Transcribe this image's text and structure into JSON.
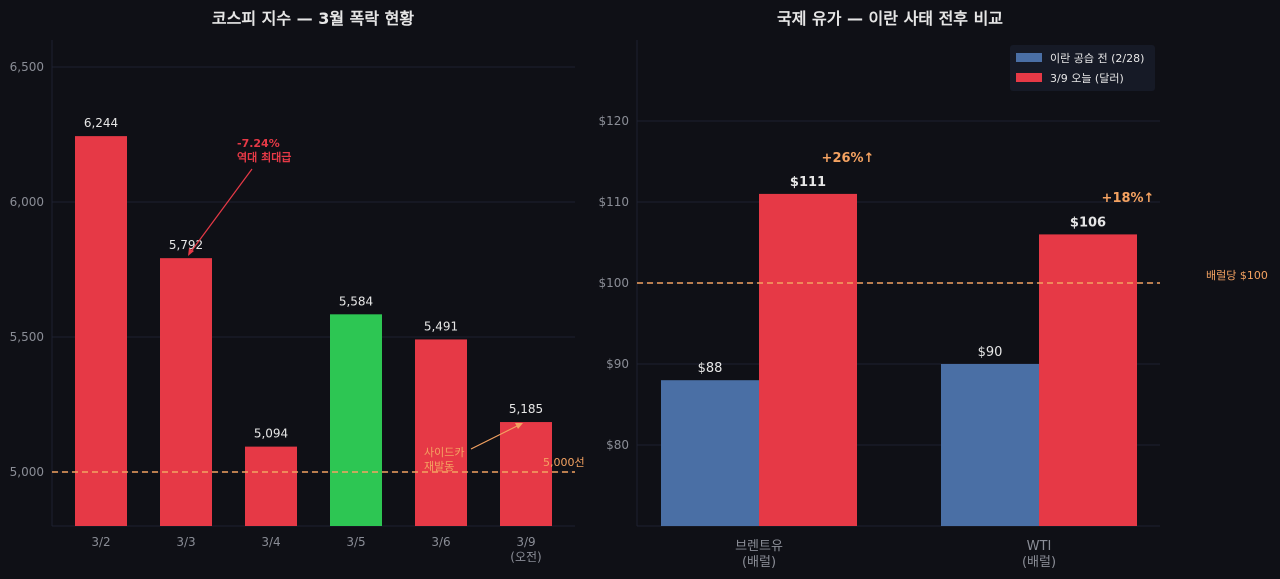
{
  "colors": {
    "background": "#0f1016",
    "grid": "#1e2130",
    "red": "#e63946",
    "green": "#2dc653",
    "blue": "#4a6fa5",
    "orange": "#f4a261",
    "text": "#e6e6e6",
    "tick": "#8a8d96"
  },
  "chart_data": [
    {
      "type": "bar",
      "title": "코스피 지수 — 3월 폭락 현황",
      "categories": [
        "3/2",
        "3/3",
        "3/4",
        "3/5",
        "3/6",
        "3/9\n(오전)"
      ],
      "values": [
        6244,
        5792,
        5094,
        5584,
        5491,
        5185
      ],
      "value_labels": [
        "6,244",
        "5,792",
        "5,094",
        "5,584",
        "5,491",
        "5,185"
      ],
      "bar_colors": [
        "red",
        "red",
        "red",
        "green",
        "red",
        "red"
      ],
      "ylim": [
        4800,
        6600
      ],
      "yticks": [
        5000,
        5500,
        6000,
        6500
      ],
      "ytick_labels": [
        "5,000",
        "5,500",
        "6,000",
        "6,500"
      ],
      "grid": true,
      "reference_line": {
        "value": 5000,
        "label": "5,000선"
      },
      "annotations": [
        {
          "text": "-7.24%\n역대 최대급",
          "target_category": "3/3",
          "color": "red"
        },
        {
          "text": "사이드카\n재발동",
          "target_category": "3/9\n(오전)",
          "color": "orange"
        }
      ]
    },
    {
      "type": "bar",
      "title": "국제 유가 — 이란 사태 전후 비교",
      "categories": [
        "브렌트유\n(배럴)",
        "WTI\n(배럴)"
      ],
      "series": [
        {
          "name": "이란 공습 전 (2/28)",
          "values": [
            88,
            90
          ],
          "labels": [
            "$88",
            "$90"
          ],
          "color": "blue"
        },
        {
          "name": "3/9 오늘 (달러)",
          "values": [
            111,
            106
          ],
          "labels": [
            "$111",
            "$106"
          ],
          "color": "red"
        }
      ],
      "change_labels": [
        "+26%↑",
        "+18%↑"
      ],
      "ylim": [
        70,
        130
      ],
      "yticks": [
        80,
        90,
        100,
        110,
        120
      ],
      "ytick_labels": [
        "$80",
        "$90",
        "$100",
        "$110",
        "$120"
      ],
      "grid": true,
      "reference_line": {
        "value": 100,
        "label": "배럴당 $100"
      },
      "legend_position": "top-right"
    }
  ]
}
